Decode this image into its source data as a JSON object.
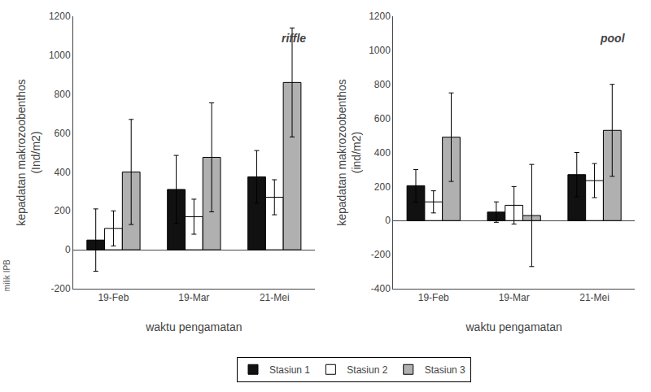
{
  "chart_data": [
    {
      "type": "bar",
      "title": "riffle",
      "categories": [
        "19-Feb",
        "19-Mar",
        "21-Mei"
      ],
      "series": [
        {
          "name": "Stasiun 1",
          "color": "#111111",
          "values": [
            50,
            310,
            375
          ],
          "errors": [
            160,
            175,
            135
          ]
        },
        {
          "name": "Stasiun 2",
          "color": "#ffffff",
          "values": [
            110,
            170,
            270
          ],
          "errors": [
            90,
            90,
            90
          ]
        },
        {
          "name": "Stasiun 3",
          "color": "#b0b0b0",
          "values": [
            400,
            475,
            860
          ],
          "errors": [
            270,
            280,
            280
          ]
        }
      ],
      "xlabel": "waktu pengamatan",
      "ylabel": "kepadatan makrozoobenthos\n(Ind/m2)",
      "ylim": [
        -200,
        1200
      ],
      "yticks": [
        -200,
        0,
        200,
        400,
        600,
        800,
        1000,
        1200
      ],
      "grid": false,
      "legend": "bottom",
      "annotations": [
        "milik IPB"
      ]
    },
    {
      "type": "bar",
      "title": "pool",
      "categories": [
        "19-Feb",
        "19-Mar",
        "21-Mei"
      ],
      "series": [
        {
          "name": "Stasiun 1",
          "color": "#111111",
          "values": [
            205,
            50,
            270
          ],
          "errors": [
            95,
            60,
            130
          ]
        },
        {
          "name": "Stasiun 2",
          "color": "#ffffff",
          "values": [
            110,
            90,
            235
          ],
          "errors": [
            65,
            110,
            100
          ]
        },
        {
          "name": "Stasiun 3",
          "color": "#b0b0b0",
          "values": [
            490,
            30,
            530
          ],
          "errors": [
            260,
            300,
            270
          ]
        }
      ],
      "xlabel": "waktu pengamatan",
      "ylabel": "kepadatan makrozoobenthos\n(ind/m2)",
      "ylim": [
        -400,
        1200
      ],
      "yticks": [
        -400,
        -200,
        0,
        200,
        400,
        600,
        800,
        1000,
        1200
      ],
      "grid": false,
      "legend": "bottom"
    }
  ]
}
